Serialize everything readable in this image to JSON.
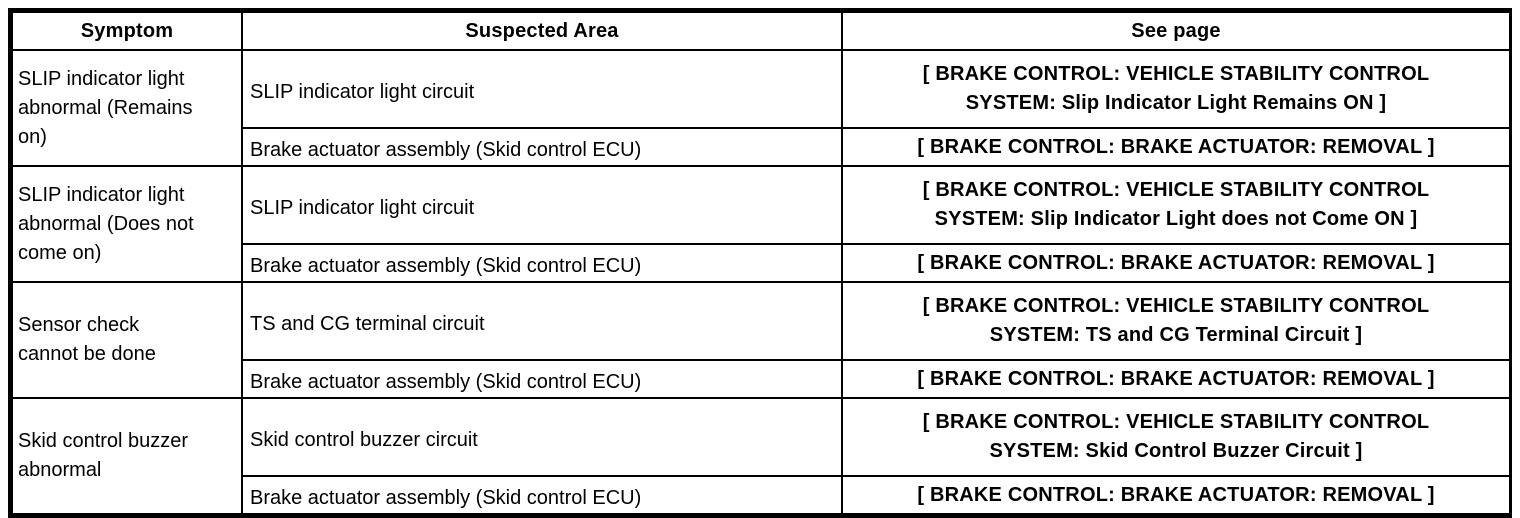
{
  "table": {
    "headers": {
      "symptom": "Symptom",
      "suspected_area": "Suspected Area",
      "see_page": "See page"
    },
    "groups": [
      {
        "symptom": "SLIP indicator light abnormal (Remains on)",
        "rows": [
          {
            "suspected_area": "SLIP indicator light circuit",
            "see_page": "[ BRAKE CONTROL: VEHICLE STABILITY CONTROL SYSTEM: Slip Indicator Light Remains ON ]"
          },
          {
            "suspected_area": "Brake actuator assembly (Skid control ECU)",
            "see_page": "[ BRAKE CONTROL: BRAKE ACTUATOR: REMOVAL ]"
          }
        ]
      },
      {
        "symptom": "SLIP indicator light abnormal (Does not come on)",
        "rows": [
          {
            "suspected_area": "SLIP indicator light circuit",
            "see_page": "[ BRAKE CONTROL: VEHICLE STABILITY CONTROL SYSTEM: Slip Indicator Light does not Come ON ]"
          },
          {
            "suspected_area": "Brake actuator assembly (Skid control ECU)",
            "see_page": "[ BRAKE CONTROL: BRAKE ACTUATOR: REMOVAL ]"
          }
        ]
      },
      {
        "symptom": "Sensor check cannot be done",
        "rows": [
          {
            "suspected_area": "TS and CG terminal circuit",
            "see_page": "[ BRAKE CONTROL: VEHICLE STABILITY CONTROL SYSTEM: TS and CG Terminal Circuit ]"
          },
          {
            "suspected_area": "Brake actuator assembly (Skid control ECU)",
            "see_page": "[ BRAKE CONTROL: BRAKE ACTUATOR: REMOVAL ]"
          }
        ]
      },
      {
        "symptom": "Skid control buzzer abnormal",
        "rows": [
          {
            "suspected_area": "Skid control buzzer circuit",
            "see_page": "[ BRAKE CONTROL: VEHICLE STABILITY CONTROL SYSTEM: Skid Control Buzzer Circuit ]"
          },
          {
            "suspected_area": "Brake actuator assembly (Skid control ECU)",
            "see_page": "[ BRAKE CONTROL: BRAKE ACTUATOR: REMOVAL ]"
          }
        ]
      }
    ]
  }
}
